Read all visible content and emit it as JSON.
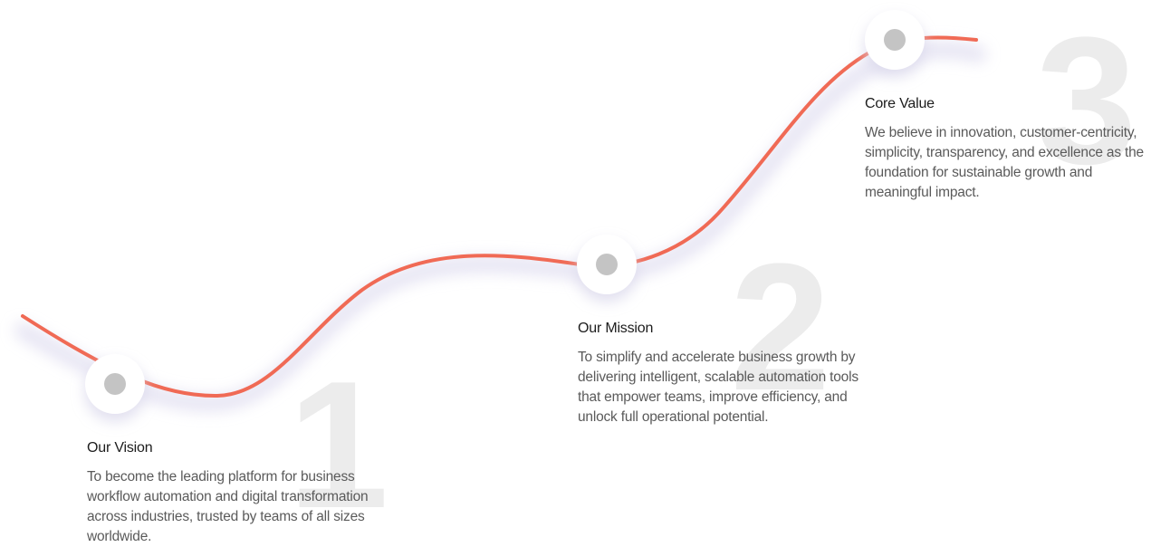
{
  "steps": [
    {
      "number": "1",
      "title": "Our Vision",
      "description": "To become the leading platform for business workflow automation and digital transformation across industries, trusted by teams of all sizes worldwide."
    },
    {
      "number": "2",
      "title": "Our Mission",
      "description": "To simplify and accelerate business growth by delivering intelligent, scalable automation tools that empower teams, improve efficiency, and unlock full operational potential."
    },
    {
      "number": "3",
      "title": "Core Value",
      "description": "We believe in innovation, customer-centricity, simplicity, transparency, and excellence as the foundation for sustainable growth and meaningful impact."
    }
  ],
  "colors": {
    "curve": "#f06a55",
    "marker": "#c4c4c4",
    "big_number": "#ececec",
    "title": "#1c1c1c",
    "description": "#5a5a5a"
  }
}
